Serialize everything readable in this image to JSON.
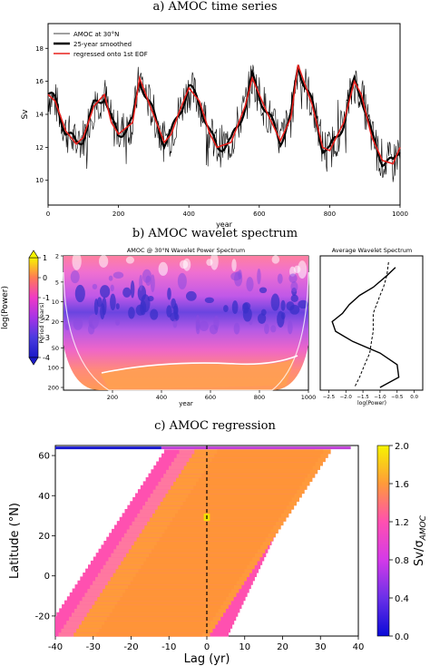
{
  "panels": {
    "a_title": "a) AMOC time series",
    "b_title": "b) AMOC wavelet spectrum",
    "c_title": "c) AMOC regression"
  },
  "chart_data": [
    {
      "type": "line",
      "xlabel": "year",
      "ylabel": "Sv",
      "xlim": [
        0,
        1000
      ],
      "ylim": [
        8.5,
        19.5
      ],
      "x_ticks": [
        0,
        200,
        400,
        600,
        800,
        1000
      ],
      "y_ticks": [
        10,
        12,
        14,
        16,
        18
      ],
      "legend_position": "top-left",
      "series": [
        {
          "name": "AMOC at 30°N",
          "color": "#000000",
          "style": "thin-noisy"
        },
        {
          "name": "25-year smoothed",
          "color": "#000000",
          "style": "thick"
        },
        {
          "name": "regressed onto 1st EOF",
          "color": "#e8201c",
          "style": "medium",
          "x": [
            0,
            20,
            50,
            80,
            100,
            130,
            160,
            180,
            200,
            240,
            260,
            290,
            330,
            350,
            370,
            400,
            430,
            460,
            480,
            520,
            560,
            580,
            620,
            660,
            690,
            710,
            750,
            780,
            800,
            840,
            870,
            890,
            920,
            950,
            980,
            1000
          ],
          "y": [
            15.2,
            14.8,
            13.0,
            12.2,
            12.6,
            14.5,
            15.2,
            13.5,
            12.8,
            13.5,
            16.2,
            14.5,
            12.3,
            12.8,
            14.0,
            15.6,
            14.8,
            12.8,
            12.0,
            12.3,
            14.5,
            16.2,
            14.2,
            12.4,
            13.8,
            17.0,
            14.6,
            12.0,
            11.8,
            13.5,
            16.0,
            15.2,
            12.6,
            11.2,
            11.0,
            12.0
          ]
        }
      ]
    },
    {
      "type": "heatmap",
      "title": "AMOC @ 30°N Wavelet Power Spectrum",
      "xlabel": "year",
      "ylabel": "Period (years)",
      "x_ticks": [
        200,
        400,
        600,
        800,
        1000
      ],
      "y_ticks": [
        2,
        5,
        10,
        20,
        50,
        100,
        200
      ],
      "colorbar": {
        "label": "log(Power)",
        "ticks": [
          1,
          0,
          -1,
          -2,
          -3,
          -4
        ],
        "range": [
          -4,
          1
        ]
      }
    },
    {
      "type": "line",
      "title": "Average Wavelet Spectrum",
      "xlabel": "log(Power)",
      "x_ticks": [
        "−2.5",
        "−2.0",
        "−1.5",
        "−1.0",
        "−0.5",
        "0.0"
      ],
      "xlim": [
        -2.75,
        0.25
      ],
      "series": [
        {
          "style": "solid",
          "x": [
            -0.55,
            -0.8,
            -1.2,
            -1.6,
            -1.9,
            -2.1,
            -2.4,
            -2.3,
            -1.8,
            -1.0,
            -0.5,
            -0.45,
            -1.0
          ],
          "period": [
            3,
            4,
            6,
            8,
            11,
            15,
            20,
            28,
            40,
            60,
            90,
            140,
            200
          ]
        },
        {
          "style": "dashed",
          "x": [
            -0.75,
            -0.8,
            -0.9,
            -1.0,
            -1.1,
            -1.2,
            -1.2,
            -1.2,
            -1.25,
            -1.3,
            -1.45,
            -1.6,
            -1.75
          ],
          "period": [
            2.5,
            4,
            6,
            8,
            11,
            15,
            20,
            28,
            40,
            60,
            90,
            140,
            200
          ]
        }
      ]
    },
    {
      "type": "heatmap",
      "xlabel": "Lag (yr)",
      "ylabel": "Latitude (°N)",
      "xlim": [
        -40,
        40
      ],
      "ylim": [
        -30,
        65
      ],
      "x_ticks": [
        -40,
        -30,
        -20,
        -10,
        0,
        10,
        20,
        30,
        40
      ],
      "y_ticks": [
        -20,
        0,
        20,
        40,
        60
      ],
      "colorbar": {
        "label": "Sv/σ",
        "label_subscript": "AMOC",
        "ticks": [
          "0.0",
          "0.4",
          "0.8",
          "1.2",
          "1.6",
          "2.0"
        ],
        "range": [
          0,
          2
        ]
      }
    }
  ]
}
